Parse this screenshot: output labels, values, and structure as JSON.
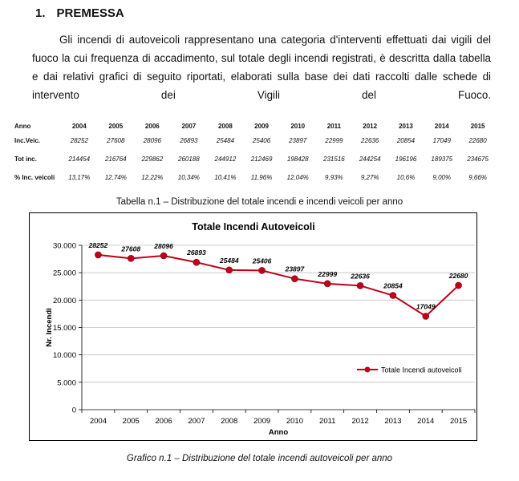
{
  "section": {
    "number": "1.",
    "title": "PREMESSA"
  },
  "paragraph": "Gli incendi di autoveicoli rappresentano una categoria d'interventi effettuati dai vigili del fuoco la cui frequenza di accadimento, sul totale degli incendi registrati, è descritta dalla tabella e dai relativi grafici di seguito riportati, elaborati sulla base dei dati raccolti dalle schede di intervento dei Vigili del Fuoco.",
  "table": {
    "header_label": "Anno",
    "years": [
      "2004",
      "2005",
      "2006",
      "2007",
      "2008",
      "2009",
      "2010",
      "2011",
      "2012",
      "2013",
      "2014",
      "2015"
    ],
    "rows": [
      {
        "label": "Inc.Veic.",
        "values": [
          "28252",
          "27608",
          "28096",
          "26893",
          "25484",
          "25406",
          "23897",
          "22999",
          "22636",
          "20854",
          "17049",
          "22680"
        ]
      },
      {
        "label": "Tot inc.",
        "values": [
          "214454",
          "216764",
          "229862",
          "260188",
          "244912",
          "212469",
          "198428",
          "231516",
          "244254",
          "196196",
          "189375",
          "234675"
        ]
      },
      {
        "label": "% Inc. veicoli",
        "values": [
          "13,17%",
          "12,74%",
          "12,22%",
          "10,34%",
          "10,41%",
          "11,96%",
          "12,04%",
          "9,93%",
          "9,27%",
          "10,6%",
          "9,00%",
          "9,66%"
        ]
      }
    ],
    "caption": "Tabella n.1 – Distribuzione del totale incendi e incendi veicoli per anno"
  },
  "chart_data": {
    "type": "line",
    "title": "Totale Incendi Autoveicoli",
    "xlabel": "Anno",
    "ylabel": "Nr. Incendi",
    "categories": [
      "2004",
      "2005",
      "2006",
      "2007",
      "2008",
      "2009",
      "2010",
      "2011",
      "2012",
      "2013",
      "2014",
      "2015"
    ],
    "series": [
      {
        "name": "Totale Incendi autoveicoli",
        "values": [
          28252,
          27608,
          28096,
          26893,
          25484,
          25406,
          23897,
          22999,
          22636,
          20854,
          17049,
          22680
        ],
        "color": "#c0001a"
      }
    ],
    "ylim": [
      0,
      30000
    ],
    "yticks": [
      0,
      5000,
      10000,
      15000,
      20000,
      25000,
      30000
    ],
    "ytick_labels": [
      "0",
      "5.000",
      "10.000",
      "15.000",
      "20.000",
      "25.000",
      "30.000"
    ],
    "grid": true,
    "legend": "right"
  },
  "figure_caption": "Grafico n.1 – Distribuzione del totale incendi autoveicoli per anno"
}
